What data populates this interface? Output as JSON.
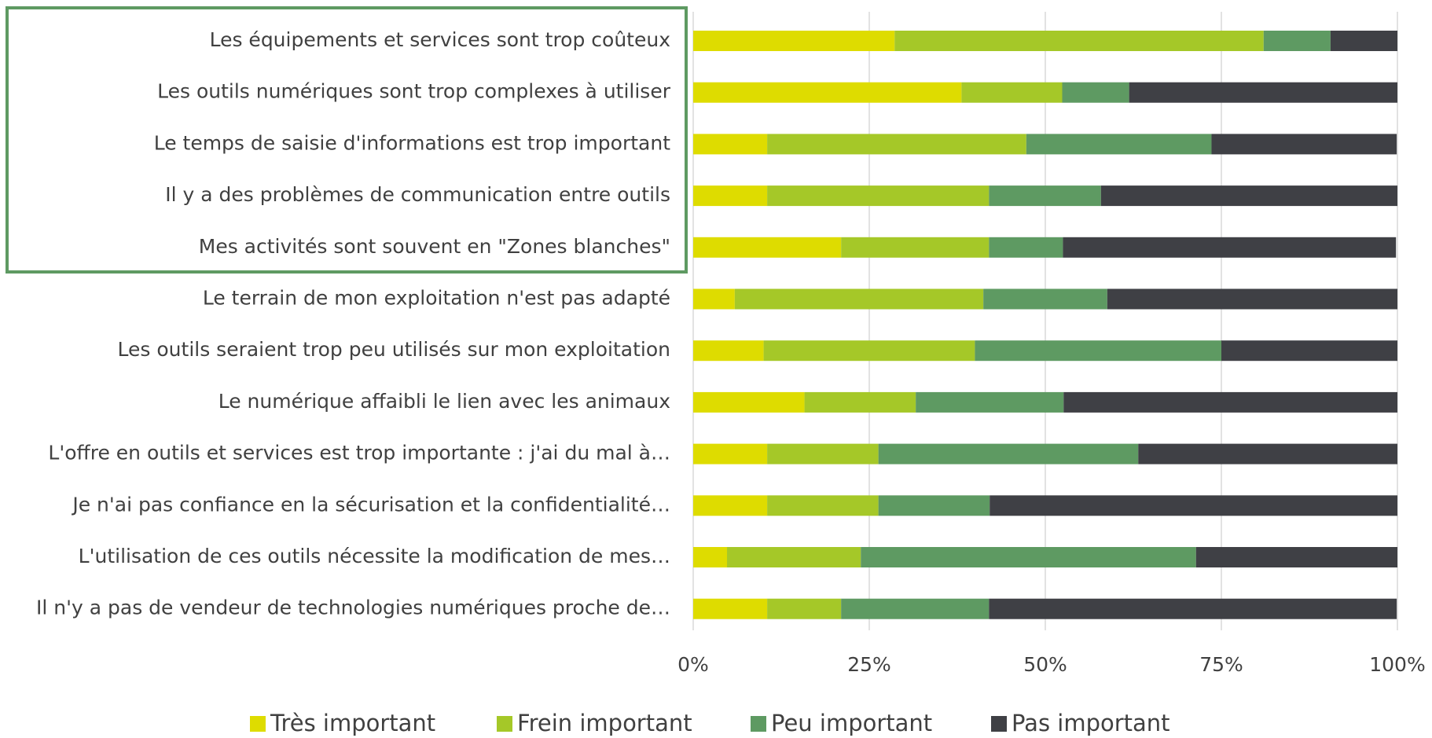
{
  "chart_data": {
    "type": "stacked_bar_horizontal",
    "categories": [
      "Les équipements et services sont trop coûteux",
      "Les outils numériques sont trop complexes à utiliser",
      "Le temps de saisie d'informations est trop important",
      "Il y a des problèmes de communication entre outils",
      "Mes activités sont souvent en \"Zones blanches\"",
      "Le terrain de mon exploitation n'est pas adapté",
      "Les outils seraient trop peu utilisés sur mon exploitation",
      "Le numérique affaibli le lien avec les animaux",
      "L'offre en outils et services est trop importante : j'ai du mal à…",
      "Je n'ai pas confiance en la sécurisation et la confidentialité…",
      "L'utilisation de ces outils nécessite la modification de mes…",
      "Il n'y a pas de vendeur de technologies numériques proche de…"
    ],
    "series": [
      {
        "name": "Très important",
        "color": "#dedc00",
        "values": [
          28.6,
          38.1,
          10.5,
          10.5,
          21.0,
          5.9,
          10,
          15.8,
          10.5,
          10.5,
          4.8,
          10.5
        ]
      },
      {
        "name": "Frein important",
        "color": "#a5c828",
        "values": [
          52.4,
          14.3,
          36.8,
          31.5,
          21.0,
          35.3,
          30,
          15.8,
          15.8,
          15.8,
          19.0,
          10.5
        ]
      },
      {
        "name": "Peu important",
        "color": "#5e9a62",
        "values": [
          9.5,
          9.5,
          26.3,
          15.9,
          10.5,
          17.6,
          35,
          21.0,
          36.9,
          15.8,
          47.6,
          21.0
        ]
      },
      {
        "name": "Pas important",
        "color": "#3f4045",
        "values": [
          9.5,
          38.1,
          26.3,
          42.1,
          47.3,
          41.2,
          25,
          47.4,
          36.8,
          57.9,
          28.6,
          57.9
        ]
      }
    ],
    "xlim": [
      0,
      100
    ],
    "xticks": [
      {
        "value": 0,
        "label": "0%"
      },
      {
        "value": 25,
        "label": "25%"
      },
      {
        "value": 50,
        "label": "50%"
      },
      {
        "value": 75,
        "label": "75%"
      },
      {
        "value": 100,
        "label": "100%"
      }
    ],
    "grid": true,
    "legend": "bottom"
  }
}
